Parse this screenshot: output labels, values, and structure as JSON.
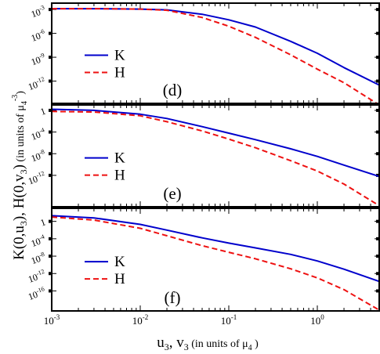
{
  "figure": {
    "xlabel": "u",
    "xlabel_sub1": "3",
    "xlabel_mid": ", v",
    "xlabel_sub2": "3",
    "xlabel_units": " (in units of μ",
    "xlabel_units_sub": "4",
    "xlabel_close": " )",
    "ylabel_main": "K(0,u",
    "ylabel_sub1": "3",
    "ylabel_mid": "), H(0,v",
    "ylabel_sub2": "3",
    "ylabel_close": ")",
    "ylabel_units": " (in units of μ",
    "ylabel_units_sub": "4",
    "ylabel_units_sup": "-3",
    "ylabel_units_close": ")",
    "x_tick_labels": [
      {
        "base": "10",
        "exp": "-3"
      },
      {
        "base": "10",
        "exp": "-2"
      },
      {
        "base": "10",
        "exp": "-1"
      },
      {
        "base": "10",
        "exp": "0"
      }
    ]
  },
  "colors": {
    "K": "#0000cc",
    "H": "#ee1111"
  },
  "chart_data": [
    {
      "type": "line",
      "panel_label": "(d)",
      "x_scale": "log",
      "y_scale": "log",
      "xlim": [
        0.001,
        5
      ],
      "ylim_log10": [
        -14.8,
        -2.2
      ],
      "y_ticks": [
        {
          "text": "10",
          "exp": "-3",
          "val": -3
        },
        {
          "text": "10",
          "exp": "-6",
          "val": -6
        },
        {
          "text": "10",
          "exp": "-9",
          "val": -9
        },
        {
          "text": "10",
          "exp": "-12",
          "val": -12
        }
      ],
      "legend": "left",
      "series": [
        {
          "name": "K",
          "style": "solid",
          "x": [
            0.001,
            0.003,
            0.01,
            0.02,
            0.05,
            0.1,
            0.2,
            0.5,
            1,
            2,
            5
          ],
          "log10_y": [
            -2.9,
            -2.9,
            -2.95,
            -3.05,
            -3.6,
            -4.3,
            -5.2,
            -7.0,
            -8.5,
            -10.3,
            -12.5
          ]
        },
        {
          "name": "H",
          "style": "dashed",
          "x": [
            0.001,
            0.003,
            0.01,
            0.02,
            0.05,
            0.1,
            0.2,
            0.5,
            1,
            2,
            5
          ],
          "log10_y": [
            -2.9,
            -2.9,
            -2.95,
            -3.1,
            -4.0,
            -5.1,
            -6.5,
            -8.7,
            -10.5,
            -12.2,
            -15.0
          ]
        }
      ]
    },
    {
      "type": "line",
      "panel_label": "(e)",
      "x_scale": "log",
      "y_scale": "log",
      "xlim": [
        0.001,
        5
      ],
      "ylim_log10": [
        -17.8,
        1.0
      ],
      "y_ticks": [
        {
          "text": "1",
          "exp": "",
          "val": 0
        },
        {
          "text": "10",
          "exp": "-4",
          "val": -4
        },
        {
          "text": "10",
          "exp": "-8",
          "val": -8
        },
        {
          "text": "10",
          "exp": "-12",
          "val": -12
        }
      ],
      "legend": "left",
      "series": [
        {
          "name": "K",
          "style": "solid",
          "x": [
            0.001,
            0.003,
            0.01,
            0.02,
            0.05,
            0.1,
            0.2,
            0.5,
            1,
            2,
            5
          ],
          "log10_y": [
            0.2,
            0.0,
            -0.7,
            -1.5,
            -3.0,
            -4.2,
            -5.4,
            -7.1,
            -8.5,
            -10.1,
            -12.2
          ]
        },
        {
          "name": "H",
          "style": "dashed",
          "x": [
            0.001,
            0.003,
            0.01,
            0.02,
            0.05,
            0.1,
            0.2,
            0.5,
            1,
            2,
            5
          ],
          "log10_y": [
            -0.2,
            -0.3,
            -1.0,
            -2.1,
            -3.8,
            -5.3,
            -6.9,
            -9.3,
            -11.2,
            -13.6,
            -17.6
          ]
        }
      ]
    },
    {
      "type": "line",
      "panel_label": "(f)",
      "x_scale": "log",
      "y_scale": "log",
      "xlim": [
        0.001,
        5
      ],
      "ylim_log10": [
        -20.6,
        3.0
      ],
      "y_ticks": [
        {
          "text": "1",
          "exp": "",
          "val": 0
        },
        {
          "text": "10",
          "exp": "-4",
          "val": -4
        },
        {
          "text": "10",
          "exp": "-8",
          "val": -8
        },
        {
          "text": "10",
          "exp": "-12",
          "val": -12
        },
        {
          "text": "10",
          "exp": "-16",
          "val": -16
        }
      ],
      "legend": "left",
      "series": [
        {
          "name": "K",
          "style": "solid",
          "x": [
            0.001,
            0.003,
            0.01,
            0.02,
            0.05,
            0.1,
            0.2,
            0.5,
            1,
            2,
            5
          ],
          "log10_y": [
            1.3,
            0.8,
            -0.7,
            -2.0,
            -3.8,
            -5.0,
            -6.1,
            -7.6,
            -9.1,
            -11.0,
            -13.8
          ]
        },
        {
          "name": "H",
          "style": "dashed",
          "x": [
            0.001,
            0.003,
            0.01,
            0.02,
            0.05,
            0.1,
            0.2,
            0.5,
            1,
            2,
            5
          ],
          "log10_y": [
            1.0,
            0.3,
            -1.6,
            -3.3,
            -5.6,
            -7.1,
            -8.6,
            -10.9,
            -13.0,
            -15.7,
            -20.4
          ]
        }
      ]
    }
  ]
}
